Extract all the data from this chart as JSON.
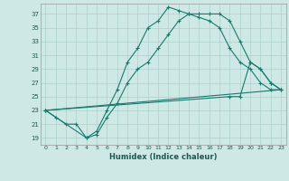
{
  "title": "",
  "xlabel": "Humidex (Indice chaleur)",
  "bg_color": "#cde8e5",
  "grid_color": "#aed0cc",
  "line_color": "#1a7a6e",
  "xlim": [
    -0.5,
    23.5
  ],
  "ylim": [
    18,
    38.5
  ],
  "yticks": [
    19,
    21,
    23,
    25,
    27,
    29,
    31,
    33,
    35,
    37
  ],
  "xticks": [
    0,
    1,
    2,
    3,
    4,
    5,
    6,
    7,
    8,
    9,
    10,
    11,
    12,
    13,
    14,
    15,
    16,
    17,
    18,
    19,
    20,
    21,
    22,
    23
  ],
  "line1_x": [
    0,
    1,
    2,
    3,
    4,
    5,
    6,
    7,
    8,
    9,
    10,
    11,
    12,
    13,
    14,
    15,
    16,
    17,
    18,
    19,
    20,
    21,
    22,
    23
  ],
  "line1_y": [
    23,
    22,
    21,
    21,
    19,
    20,
    23,
    26,
    30,
    32,
    35,
    36,
    38,
    37.5,
    37,
    36.5,
    36,
    35,
    32,
    30,
    29,
    27,
    26,
    26
  ],
  "line2_x": [
    0,
    4,
    5,
    6,
    7,
    8,
    9,
    10,
    11,
    12,
    13,
    14,
    15,
    16,
    17,
    18,
    19,
    20,
    21,
    22,
    23
  ],
  "line2_y": [
    23,
    19,
    19.5,
    22,
    24,
    27,
    29,
    30,
    32,
    34,
    36,
    37,
    37,
    37,
    37,
    36,
    33,
    30,
    29,
    27,
    26
  ],
  "line3_x": [
    0,
    23
  ],
  "line3_y": [
    23,
    26
  ],
  "line4_x": [
    0,
    18,
    19,
    20,
    21,
    22,
    23
  ],
  "line4_y": [
    23,
    25,
    25,
    30,
    29,
    27,
    26
  ]
}
